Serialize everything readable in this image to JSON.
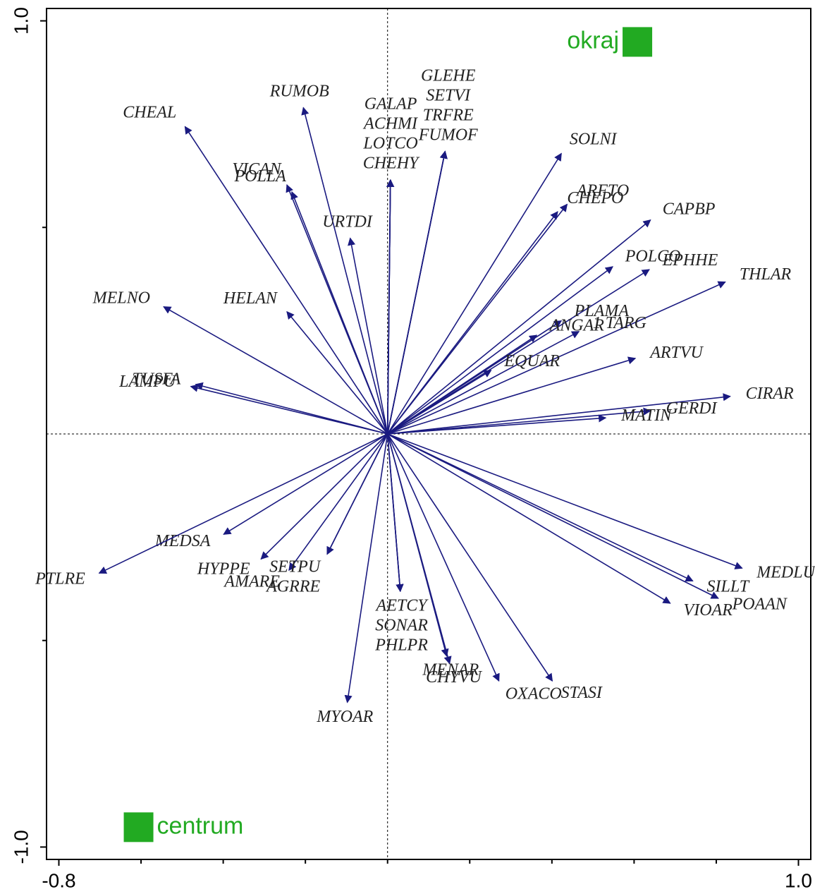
{
  "chart_data": {
    "type": "biplot",
    "xlim": [
      -0.83,
      1.03
    ],
    "ylim": [
      -1.03,
      1.03
    ],
    "xticks": [
      -0.8,
      {
        "value": 1,
        "label": "1.0"
      }
    ],
    "xminorticks": [
      -0.6,
      -0.4,
      -0.2,
      0,
      0.2,
      0.4,
      0.6,
      0.8
    ],
    "yticks": [
      {
        "value": -1,
        "label": "-1.0"
      },
      {
        "value": 1,
        "label": "1.0"
      }
    ],
    "yminorticks": [
      -0.5,
      0.5
    ],
    "arrows": {
      "color": "#1a1a80",
      "names": [
        "CHEAL",
        "RUMOB",
        "VICAN",
        "POLLA",
        "GALAP",
        "ACHMI",
        "LOTCO",
        "CHEHY",
        "GLEHE",
        "SETVI",
        "TRFRE",
        "FUMOF",
        "SOLNI",
        "ARFTO",
        "CHEPO",
        "CAPBP",
        "URTDI",
        "POLCO",
        "EPHHE",
        "THLAR",
        "MELNO",
        "HELAN",
        "PLAMA",
        "1 TARG",
        "ANGAR",
        "ARTVU",
        "EQUAR",
        "TUSFA",
        "LAMPU",
        "CIRAR",
        "GERDI",
        "MATIN",
        "MEDSA",
        "PTLRE",
        "HYPPE",
        "AMARE",
        "SETPU",
        "AGRRE",
        "AETCY",
        "SONAR",
        "PHLPR",
        "CHYVU",
        "MENAR",
        "OXACO",
        "STASI",
        "MYOAR",
        "MEDLU",
        "VIOAR",
        "SILLT",
        "POAAN"
      ],
      "x": [
        -0.493,
        -0.205,
        -0.245,
        -0.233,
        0.007,
        0.007,
        0.007,
        0.007,
        0.14,
        0.14,
        0.14,
        0.14,
        0.423,
        0.437,
        0.414,
        0.64,
        -0.091,
        0.548,
        0.637,
        0.822,
        -0.545,
        -0.245,
        0.423,
        0.466,
        0.363,
        0.603,
        0.252,
        -0.467,
        -0.479,
        0.834,
        0.64,
        0.531,
        -0.399,
        -0.702,
        -0.308,
        -0.24,
        -0.147,
        -0.147,
        0.031,
        0.031,
        0.031,
        0.151,
        0.144,
        0.271,
        0.401,
        -0.098,
        0.863,
        0.688,
        0.743,
        0.805
      ],
      "y": [
        0.744,
        0.79,
        0.603,
        0.586,
        0.615,
        0.615,
        0.615,
        0.615,
        0.684,
        0.684,
        0.684,
        0.684,
        0.679,
        0.556,
        0.538,
        0.518,
        0.474,
        0.405,
        0.398,
        0.368,
        0.308,
        0.296,
        0.274,
        0.248,
        0.239,
        0.183,
        0.154,
        0.12,
        0.115,
        0.091,
        0.056,
        0.039,
        -0.243,
        -0.337,
        -0.303,
        -0.33,
        -0.291,
        -0.291,
        -0.381,
        -0.381,
        -0.381,
        -0.556,
        -0.538,
        -0.598,
        -0.598,
        -0.65,
        -0.325,
        -0.41,
        -0.356,
        -0.398
      ]
    },
    "centroids": {
      "color": "#22aa22",
      "names": [
        "okraj",
        "centrum"
      ],
      "x": [
        0.608,
        -0.606
      ],
      "y": [
        0.949,
        -0.952
      ]
    }
  }
}
